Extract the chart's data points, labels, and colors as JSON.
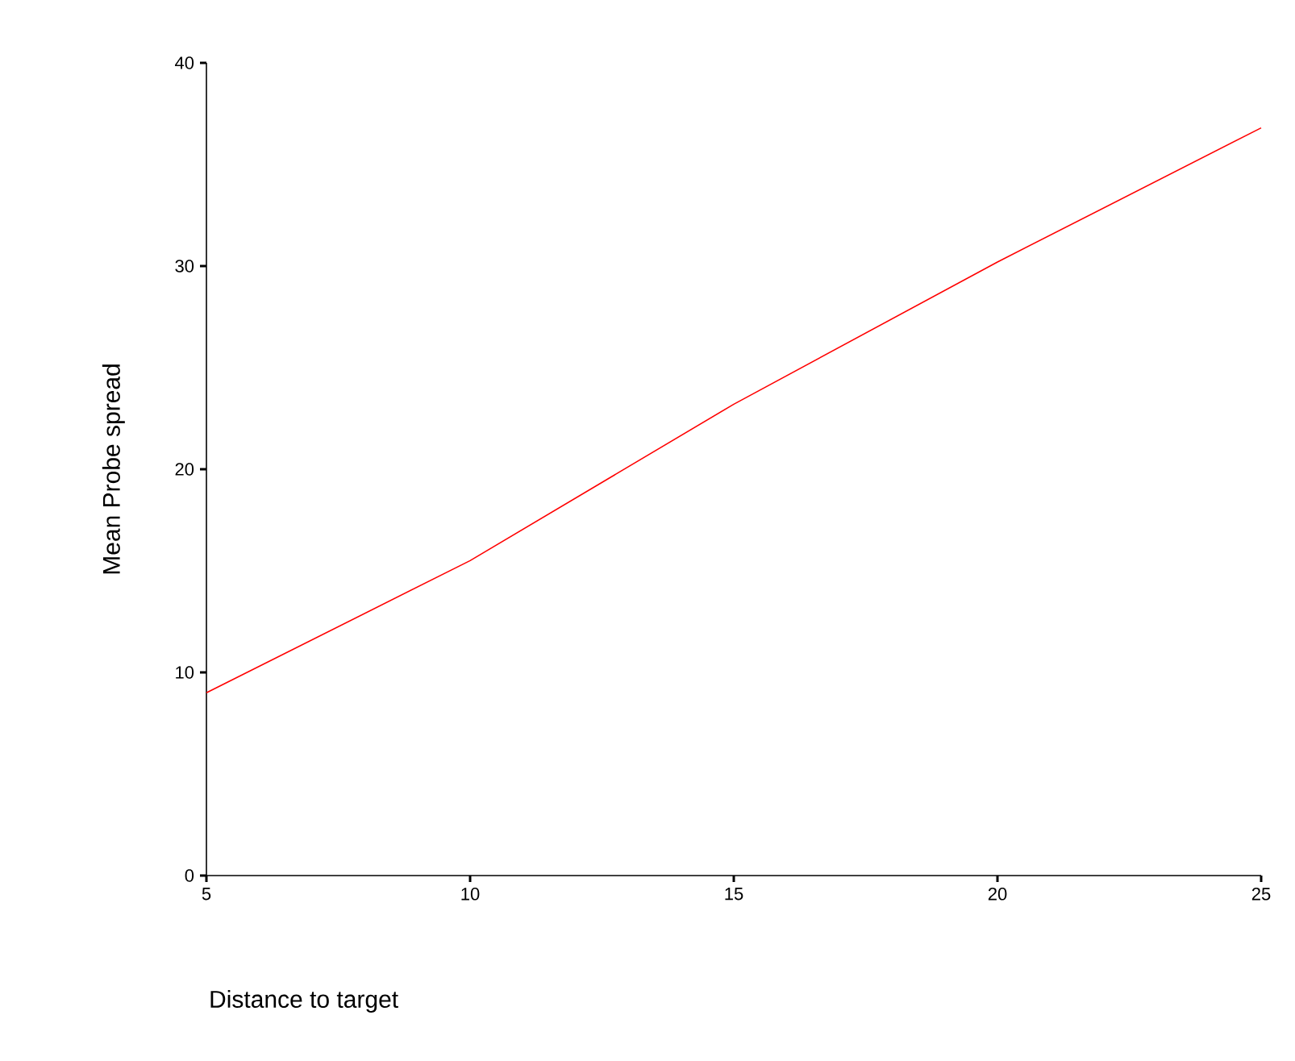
{
  "chart_data": {
    "type": "line",
    "xlabel": "Distance to target",
    "ylabel": "Mean Probe spread",
    "x": [
      5,
      10,
      15,
      20,
      25
    ],
    "series": [
      {
        "color": "#ff0000",
        "values": [
          9.0,
          15.5,
          23.2,
          30.2,
          36.8
        ]
      }
    ],
    "xlim": [
      5,
      25
    ],
    "xticks": [
      5,
      10,
      15,
      20,
      25
    ],
    "ylim": [
      0,
      40
    ],
    "yticks": [
      0,
      10,
      20,
      30,
      40
    ],
    "grid": false,
    "marker": "none",
    "line_style": "solid"
  }
}
